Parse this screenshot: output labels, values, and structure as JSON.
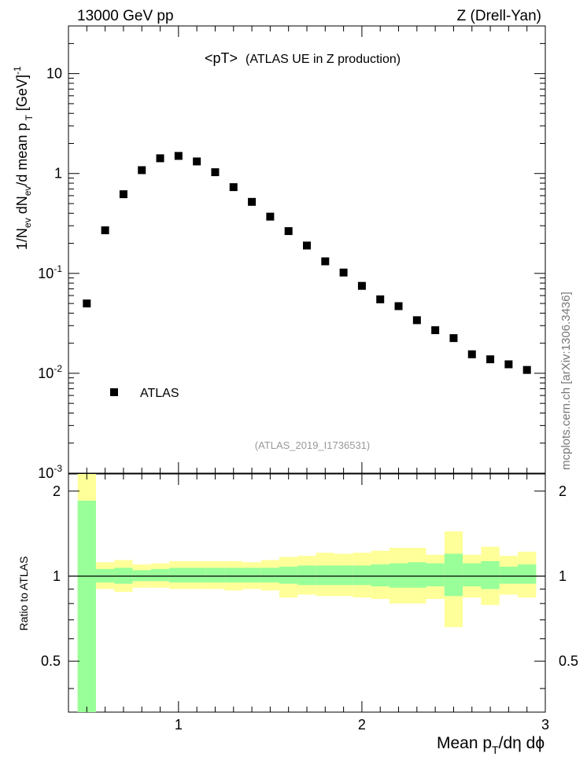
{
  "header": {
    "left": "13000 GeV pp",
    "right": "Z (Drell-Yan)"
  },
  "plot_title": "<pT>",
  "plot_subtitle": "(ATLAS UE in Z production)",
  "analysis_id": "(ATLAS_2019_I1736531)",
  "side_label": "mcplots.cern.ch [arXiv:1306.3436]",
  "main_ylabel": "1/N_ev dN_ev/d mean p_T [GeV]^-1",
  "ratio_ylabel": "Ratio to ATLAS",
  "xlabel": "Mean p_T/dη dϕ",
  "legend": [
    {
      "label": "ATLAS",
      "marker": "square",
      "color": "#000000"
    }
  ],
  "colors": {
    "stat_band": "#99ff99",
    "total_band": "#ffff99",
    "data": "#000000"
  },
  "chart_data": [
    {
      "type": "scatter",
      "yscale": "log",
      "xlim": [
        0.4,
        3.0
      ],
      "ylim": [
        0.001,
        30
      ],
      "yticks": [
        "10^-3",
        "10^-2",
        "10^-1",
        "1",
        "10"
      ],
      "series": [
        {
          "name": "ATLAS",
          "x": [
            0.5,
            0.6,
            0.7,
            0.8,
            0.9,
            1.0,
            1.1,
            1.2,
            1.3,
            1.4,
            1.5,
            1.6,
            1.7,
            1.8,
            1.9,
            2.0,
            2.1,
            2.2,
            2.3,
            2.4,
            2.5,
            2.6,
            2.7,
            2.8,
            2.9
          ],
          "y": [
            0.05,
            0.27,
            0.62,
            1.08,
            1.42,
            1.5,
            1.32,
            1.03,
            0.73,
            0.52,
            0.37,
            0.265,
            0.19,
            0.132,
            0.102,
            0.075,
            0.055,
            0.047,
            0.034,
            0.027,
            0.0225,
            0.0155,
            0.0138,
            0.0123,
            0.0108
          ]
        }
      ]
    },
    {
      "type": "area",
      "xlim": [
        0.4,
        3.0
      ],
      "ylim": [
        0.33,
        2.3
      ],
      "xticks": [
        "1",
        "2",
        "3"
      ],
      "yticks": [
        "0.5",
        "1",
        "2"
      ],
      "bins": [
        0.45,
        0.55,
        0.65,
        0.75,
        0.85,
        0.95,
        1.05,
        1.15,
        1.25,
        1.35,
        1.45,
        1.55,
        1.65,
        1.75,
        1.85,
        1.95,
        2.05,
        2.15,
        2.25,
        2.35,
        2.45,
        2.55,
        2.65,
        2.75,
        2.85,
        2.95
      ],
      "series": [
        {
          "name": "stat",
          "low": [
            0.3,
            0.95,
            0.94,
            0.96,
            0.96,
            0.95,
            0.95,
            0.95,
            0.95,
            0.95,
            0.95,
            0.94,
            0.93,
            0.93,
            0.93,
            0.93,
            0.92,
            0.91,
            0.91,
            0.92,
            0.85,
            0.92,
            0.9,
            0.94,
            0.94
          ],
          "high": [
            1.85,
            1.06,
            1.07,
            1.05,
            1.06,
            1.07,
            1.07,
            1.07,
            1.07,
            1.07,
            1.07,
            1.08,
            1.09,
            1.09,
            1.09,
            1.09,
            1.1,
            1.11,
            1.12,
            1.11,
            1.2,
            1.11,
            1.13,
            1.08,
            1.1
          ]
        },
        {
          "name": "total",
          "low": [
            0.3,
            0.9,
            0.88,
            0.91,
            0.91,
            0.9,
            0.9,
            0.9,
            0.89,
            0.9,
            0.89,
            0.84,
            0.86,
            0.85,
            0.85,
            0.84,
            0.83,
            0.8,
            0.8,
            0.83,
            0.66,
            0.84,
            0.79,
            0.86,
            0.84
          ],
          "high": [
            2.35,
            1.12,
            1.14,
            1.1,
            1.11,
            1.13,
            1.13,
            1.13,
            1.13,
            1.12,
            1.14,
            1.17,
            1.18,
            1.21,
            1.2,
            1.21,
            1.23,
            1.26,
            1.26,
            1.19,
            1.44,
            1.19,
            1.27,
            1.18,
            1.22
          ]
        }
      ],
      "reference": {
        "name": "ATLAS",
        "value": 1.0
      }
    }
  ]
}
